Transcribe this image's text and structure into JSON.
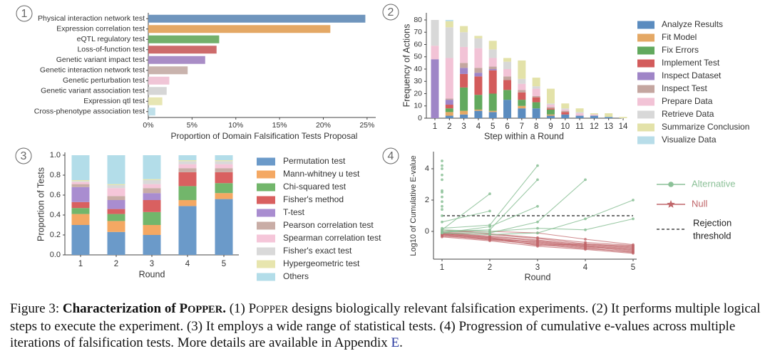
{
  "figure": {
    "caption": {
      "label": "Figure 3:",
      "bold_title": "Characterization of POPPER.",
      "text": "(1) POPPER designs biologically relevant falsification experiments. (2) It performs multiple logical steps to execute the experiment. (3) It employs a wide range of statistical tests. (4) Progression of cumulative e-values across multiple iterations of falsification tests. More details are available in Appendix",
      "appendix_link": "E",
      "end": "."
    }
  },
  "chart_data": [
    {
      "panel": "1",
      "type": "bar",
      "orientation": "horizontal",
      "categories": [
        "Physical interaction network test",
        "Expression correlation test",
        "eQTL regulatory test",
        "Loss-of-function test",
        "Genetic variant impact test",
        "Genetic interaction network test",
        "Genetic perturbation test",
        "Genetic variant association test",
        "Expression qtl test",
        "Cross-phenotype association test"
      ],
      "values": [
        24.8,
        20.8,
        8.1,
        7.8,
        6.5,
        4.5,
        2.4,
        2.1,
        1.6,
        0.8
      ],
      "colors": [
        "#6f95bd",
        "#e4a865",
        "#73b06b",
        "#cd6b6b",
        "#a98dc6",
        "#c9b3ad",
        "#f0c5d6",
        "#d6d6d6",
        "#e7e6b3",
        "#bfe0ea"
      ],
      "xlabel": "Proportion of Domain Falsification Tests Proposal",
      "xticks": [
        "0%",
        "5%",
        "10%",
        "15%",
        "20%",
        "25%"
      ],
      "xlim": [
        0,
        26
      ]
    },
    {
      "panel": "2",
      "type": "bar",
      "stacked": true,
      "categories": [
        "1",
        "2",
        "3",
        "4",
        "5",
        "6",
        "7",
        "8",
        "9",
        "10",
        "11",
        "12",
        "13",
        "14"
      ],
      "xlabel": "Step within a Round",
      "ylabel": "Frequency of Actions",
      "yticks": [
        "0",
        "10",
        "20",
        "30",
        "40",
        "50",
        "60",
        "70",
        "80"
      ],
      "ylim": [
        0,
        83
      ],
      "series": [
        {
          "name": "Analyze Results",
          "color": "#5b8cbf",
          "values": [
            0,
            2,
            3,
            6,
            5,
            15,
            8,
            8,
            2,
            3,
            2,
            2,
            1,
            0
          ]
        },
        {
          "name": "Fit Model",
          "color": "#e4a865",
          "values": [
            0,
            3,
            3,
            1,
            1,
            0,
            2,
            0,
            1,
            0,
            0,
            0,
            0,
            0
          ]
        },
        {
          "name": "Fix Errors",
          "color": "#62a95e",
          "values": [
            0,
            3,
            19,
            12,
            14,
            8,
            5,
            5,
            4,
            0,
            0,
            0,
            0,
            0
          ]
        },
        {
          "name": "Implement Test",
          "color": "#d35c5c",
          "values": [
            0,
            3,
            11,
            15,
            19,
            8,
            6,
            4,
            1,
            2,
            0,
            0,
            0,
            0
          ]
        },
        {
          "name": "Inspect Dataset",
          "color": "#9f85c7",
          "values": [
            48,
            4,
            5,
            3,
            1,
            0,
            0,
            0,
            0,
            0,
            0,
            0,
            0,
            0
          ]
        },
        {
          "name": "Inspect Test",
          "color": "#c4a6a0",
          "values": [
            0,
            1,
            4,
            4,
            2,
            3,
            2,
            1,
            1,
            1,
            0,
            0,
            0,
            0
          ]
        },
        {
          "name": "Prepare Data",
          "color": "#f2c3d6",
          "values": [
            11,
            33,
            13,
            16,
            7,
            6,
            5,
            6,
            2,
            1,
            2,
            1,
            0,
            0
          ]
        },
        {
          "name": "Retrieve Data",
          "color": "#d8d8d8",
          "values": [
            21,
            25,
            12,
            8,
            7,
            6,
            4,
            2,
            1,
            1,
            1,
            0,
            0,
            0
          ]
        },
        {
          "name": "Summarize Conclusion",
          "color": "#e3e2a9",
          "values": [
            0,
            5,
            5,
            2,
            7,
            3,
            15,
            7,
            12,
            4,
            3,
            1,
            3,
            1
          ]
        },
        {
          "name": "Visualize Data",
          "color": "#b8dde9",
          "values": [
            0,
            1,
            0,
            0,
            0,
            0,
            0,
            0,
            0,
            0,
            0,
            0,
            0,
            0
          ]
        }
      ]
    },
    {
      "panel": "3",
      "type": "bar",
      "stacked": true,
      "categories": [
        "1",
        "2",
        "3",
        "4",
        "5"
      ],
      "xlabel": "Round",
      "ylabel": "Proportion of Tests",
      "yticks": [
        "0.0",
        "0.2",
        "0.4",
        "0.6",
        "0.8",
        "1.0"
      ],
      "ylim": [
        0,
        1.02
      ],
      "series": [
        {
          "name": "Permutation test",
          "color": "#6b9ac9",
          "values": [
            0.3,
            0.23,
            0.2,
            0.49,
            0.56
          ]
        },
        {
          "name": "Mann-whitney u test",
          "color": "#f4a863",
          "values": [
            0.11,
            0.11,
            0.1,
            0.06,
            0.06
          ]
        },
        {
          "name": "Chi-squared test",
          "color": "#72b66b",
          "values": [
            0.06,
            0.07,
            0.13,
            0.14,
            0.1
          ]
        },
        {
          "name": "Fisher's method",
          "color": "#d96060",
          "values": [
            0.06,
            0.05,
            0.12,
            0.14,
            0.11
          ]
        },
        {
          "name": "T-test",
          "color": "#a98dd0",
          "values": [
            0.15,
            0.09,
            0.07,
            0.0,
            0.0
          ]
        },
        {
          "name": "Pearson correlation test",
          "color": "#c9ada6",
          "values": [
            0.03,
            0.04,
            0.05,
            0.04,
            0.04
          ]
        },
        {
          "name": "Spearman correlation test",
          "color": "#f5c6d9",
          "values": [
            0.02,
            0.08,
            0.04,
            0.04,
            0.04
          ]
        },
        {
          "name": "Fisher's exact test",
          "color": "#d9d9d9",
          "values": [
            0.01,
            0.03,
            0.04,
            0.03,
            0.03
          ]
        },
        {
          "name": "Hypergeometric test",
          "color": "#e7e5ae",
          "values": [
            0.01,
            0.01,
            0.01,
            0.01,
            0.01
          ]
        },
        {
          "name": "Others",
          "color": "#b3dde9",
          "values": [
            0.25,
            0.29,
            0.24,
            0.05,
            0.05
          ]
        }
      ]
    },
    {
      "panel": "4",
      "type": "line",
      "xlabel": "Round",
      "ylabel": "Log10 of Cumulative E-value",
      "xticks": [
        "1",
        "2",
        "3",
        "4",
        "5"
      ],
      "yticks": [
        "0",
        "2",
        "4"
      ],
      "xlim": [
        1,
        5
      ],
      "ylim": [
        -1.5,
        4.7
      ],
      "threshold": 1.0,
      "legend": [
        {
          "name": "Alternative",
          "color": "#8cc198",
          "marker": "circle"
        },
        {
          "name": "Null",
          "color": "#c0666a",
          "marker": "star"
        },
        {
          "name": "Rejection threshold",
          "color": "#222222",
          "marker": "dashed"
        }
      ],
      "series": [
        {
          "group": "Alternative",
          "points": [
            [
              1,
              4.5
            ]
          ]
        },
        {
          "group": "Alternative",
          "points": [
            [
              1,
              4.2
            ]
          ]
        },
        {
          "group": "Alternative",
          "points": [
            [
              1,
              4.0
            ]
          ]
        },
        {
          "group": "Alternative",
          "points": [
            [
              1,
              3.6
            ]
          ]
        },
        {
          "group": "Alternative",
          "points": [
            [
              1,
              3.3
            ]
          ]
        },
        {
          "group": "Alternative",
          "points": [
            [
              1,
              2.6
            ]
          ]
        },
        {
          "group": "Alternative",
          "points": [
            [
              1,
              2.5
            ]
          ]
        },
        {
          "group": "Alternative",
          "points": [
            [
              1,
              2.2
            ]
          ]
        },
        {
          "group": "Alternative",
          "points": [
            [
              1,
              1.9
            ]
          ]
        },
        {
          "group": "Alternative",
          "points": [
            [
              1,
              1.6
            ]
          ]
        },
        {
          "group": "Alternative",
          "points": [
            [
              1,
              1.4
            ]
          ]
        },
        {
          "group": "Alternative",
          "points": [
            [
              1,
              1.0
            ]
          ]
        },
        {
          "group": "Alternative",
          "points": [
            [
              1,
              0.1
            ],
            [
              2,
              2.4
            ]
          ]
        },
        {
          "group": "Alternative",
          "points": [
            [
              1,
              0.6
            ],
            [
              2,
              1.3
            ]
          ]
        },
        {
          "group": "Alternative",
          "points": [
            [
              1,
              0.2
            ],
            [
              2,
              0.4
            ],
            [
              3,
              4.2
            ]
          ]
        },
        {
          "group": "Alternative",
          "points": [
            [
              1,
              0.0
            ],
            [
              2,
              0.1
            ],
            [
              3,
              3.3
            ]
          ]
        },
        {
          "group": "Alternative",
          "points": [
            [
              1,
              -0.1
            ],
            [
              2,
              0.3
            ],
            [
              3,
              1.6
            ]
          ]
        },
        {
          "group": "Alternative",
          "points": [
            [
              1,
              0.0
            ],
            [
              2,
              -0.1
            ],
            [
              3,
              0.6
            ],
            [
              4,
              3.3
            ]
          ]
        },
        {
          "group": "Alternative",
          "points": [
            [
              1,
              -0.1
            ],
            [
              2,
              -0.2
            ],
            [
              3,
              -0.1
            ],
            [
              4,
              0.8
            ],
            [
              5,
              2.0
            ]
          ]
        },
        {
          "group": "Alternative",
          "points": [
            [
              1,
              0.1
            ],
            [
              2,
              0.0
            ],
            [
              3,
              0.2
            ],
            [
              4,
              0.1
            ],
            [
              5,
              0.8
            ]
          ]
        },
        {
          "group": "Null",
          "points": [
            [
              1,
              -0.1
            ],
            [
              2,
              -0.35
            ],
            [
              3,
              -0.6
            ],
            [
              4,
              -0.9
            ],
            [
              5,
              -1.1
            ]
          ]
        },
        {
          "group": "Null",
          "points": [
            [
              1,
              -0.15
            ],
            [
              2,
              -0.4
            ],
            [
              3,
              -0.7
            ],
            [
              4,
              -0.95
            ],
            [
              5,
              -1.2
            ]
          ]
        },
        {
          "group": "Null",
          "points": [
            [
              1,
              -0.2
            ],
            [
              2,
              -0.45
            ],
            [
              3,
              -0.75
            ],
            [
              4,
              -1.0
            ],
            [
              5,
              -1.25
            ]
          ]
        },
        {
          "group": "Null",
          "points": [
            [
              1,
              -0.05
            ],
            [
              2,
              -0.2
            ],
            [
              3,
              -0.45
            ],
            [
              4,
              -0.8
            ],
            [
              5,
              -0.95
            ]
          ]
        },
        {
          "group": "Null",
          "points": [
            [
              1,
              -0.25
            ],
            [
              2,
              -0.55
            ],
            [
              3,
              -0.8
            ],
            [
              4,
              -1.05
            ],
            [
              5,
              -1.35
            ]
          ]
        },
        {
          "group": "Null",
          "points": [
            [
              1,
              -0.3
            ],
            [
              2,
              -0.5
            ],
            [
              3,
              -0.85
            ],
            [
              4,
              -1.1
            ],
            [
              5,
              -1.3
            ]
          ]
        },
        {
          "group": "Null",
          "points": [
            [
              1,
              -0.1
            ],
            [
              2,
              -0.3
            ],
            [
              3,
              -0.55
            ],
            [
              4,
              -0.85
            ],
            [
              5,
              -1.05
            ]
          ]
        },
        {
          "group": "Null",
          "points": [
            [
              1,
              0.1
            ],
            [
              2,
              -0.15
            ],
            [
              3,
              -0.4
            ],
            [
              4,
              -0.7
            ],
            [
              5,
              -0.9
            ]
          ]
        },
        {
          "group": "Null",
          "points": [
            [
              1,
              -0.2
            ],
            [
              2,
              -0.5
            ],
            [
              3,
              -0.65
            ],
            [
              4,
              -0.95
            ],
            [
              5,
              -1.15
            ]
          ]
        },
        {
          "group": "Null",
          "points": [
            [
              1,
              -0.15
            ],
            [
              2,
              -0.4
            ],
            [
              3,
              -0.9
            ],
            [
              4,
              -0.8
            ],
            [
              5,
              -1.0
            ]
          ]
        },
        {
          "group": "Null",
          "points": [
            [
              1,
              0.0
            ],
            [
              2,
              0.0
            ],
            [
              3,
              -0.1
            ],
            [
              4,
              -0.5
            ],
            [
              5,
              -0.85
            ]
          ]
        },
        {
          "group": "Null",
          "points": [
            [
              1,
              -0.35
            ],
            [
              2,
              -0.6
            ],
            [
              3,
              -0.95
            ],
            [
              4,
              -1.15
            ],
            [
              5,
              -1.4
            ]
          ]
        }
      ]
    }
  ]
}
